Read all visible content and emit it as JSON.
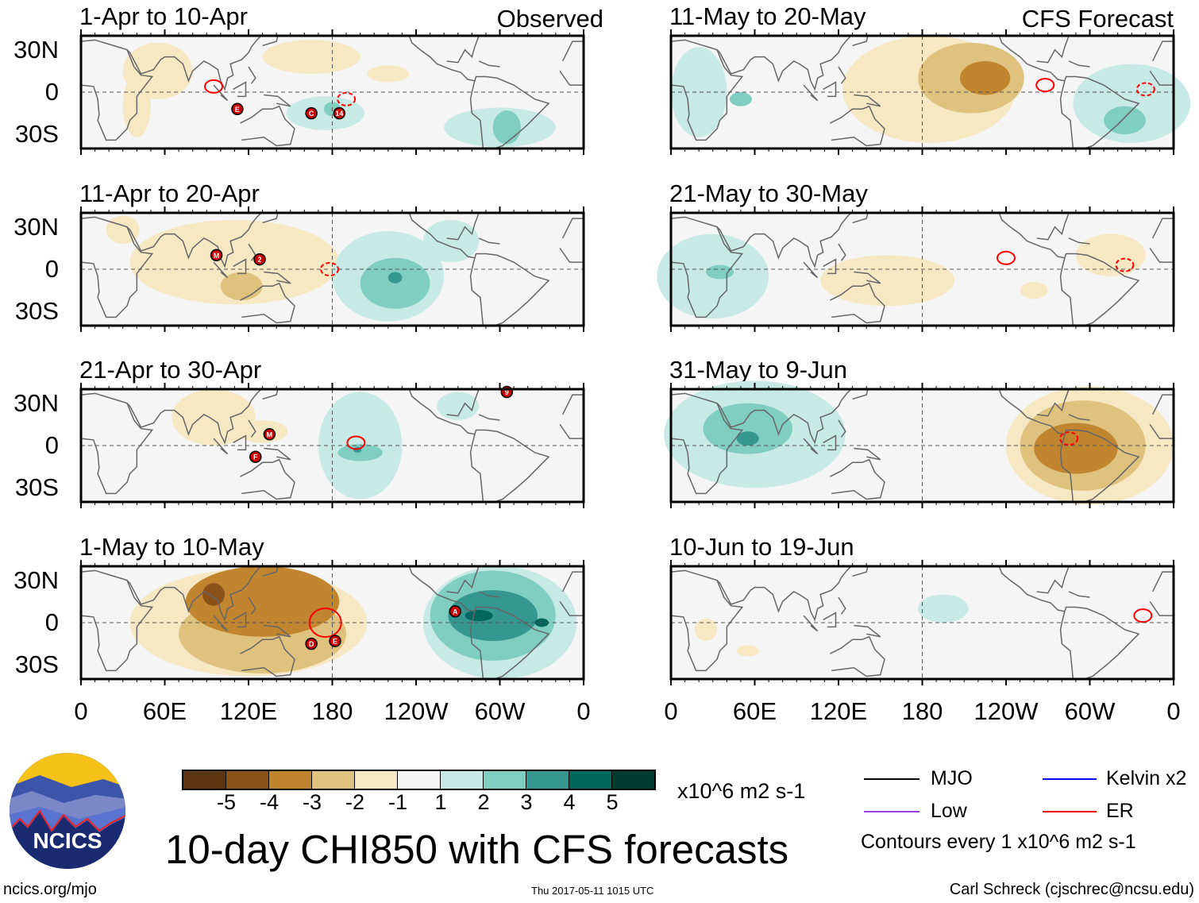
{
  "header": {
    "left_label": "Observed",
    "right_label": "CFS Forecast"
  },
  "axis": {
    "lat_labels": [
      "30N",
      "0",
      "30S"
    ],
    "lon_labels": [
      "0",
      "60E",
      "120E",
      "180",
      "120W",
      "60W",
      "0"
    ]
  },
  "colorbar": {
    "labels": [
      "-5",
      "-4",
      "-3",
      "-2",
      "-1",
      "1",
      "2",
      "3",
      "4",
      "5"
    ],
    "colors": [
      "#5b3510",
      "#8c5117",
      "#c1842f",
      "#dfc27d",
      "#f6e8c3",
      "#f5f5f5",
      "#c7eae5",
      "#80cdc1",
      "#35978f",
      "#01665e",
      "#003c30"
    ],
    "units": "x10^6 m2 s-1"
  },
  "legend": {
    "items": [
      {
        "label": "MJO",
        "color": "#000000"
      },
      {
        "label": "Kelvin x2",
        "color": "#0000ff"
      },
      {
        "label": "Low",
        "color": "#a040e0"
      },
      {
        "label": "ER",
        "color": "#ff0000"
      }
    ],
    "note": "Contours every 1 x10^6 m2 s-1"
  },
  "title": "10-day CHI850 with CFS forecasts",
  "logo": {
    "text": "NCICS"
  },
  "footer": {
    "url": "ncics.org/mjo",
    "timestamp": "Thu 2017-05-11 1015 UTC",
    "author": "Carl Schreck (cjschrec@ncsu.edu)"
  },
  "chart_data": [
    {
      "type": "heatmap",
      "title": "1-Apr to 10-Apr",
      "source": "Observed",
      "xlim": [
        0,
        360
      ],
      "ylim": [
        -40,
        40
      ],
      "anomalies": [
        [
          55,
          15,
          25,
          20,
          -1
        ],
        [
          40,
          -10,
          10,
          22,
          -1
        ],
        [
          165,
          25,
          35,
          12,
          -1
        ],
        [
          220,
          13,
          15,
          6,
          -1
        ],
        [
          175,
          -15,
          28,
          12,
          1
        ],
        [
          180,
          -12,
          6,
          5,
          2
        ],
        [
          300,
          -25,
          40,
          14,
          1
        ],
        [
          305,
          -25,
          10,
          12,
          2
        ]
      ],
      "er_contours": [
        [
          95,
          4,
          "solid"
        ],
        [
          190,
          -5,
          "dashed"
        ]
      ],
      "cyclones": [
        [
          112,
          -12,
          "E"
        ],
        [
          165,
          -15,
          "C"
        ],
        [
          185,
          -15,
          "14"
        ]
      ]
    },
    {
      "type": "heatmap",
      "title": "11-Apr to 20-Apr",
      "source": "Observed",
      "xlim": [
        0,
        360
      ],
      "ylim": [
        -40,
        40
      ],
      "anomalies": [
        [
          110,
          5,
          75,
          30,
          -1
        ],
        [
          30,
          28,
          12,
          10,
          -1
        ],
        [
          115,
          -12,
          15,
          10,
          -2
        ],
        [
          220,
          -5,
          40,
          32,
          1
        ],
        [
          265,
          20,
          20,
          15,
          1
        ],
        [
          225,
          -10,
          25,
          18,
          2
        ],
        [
          225,
          -6,
          5,
          4,
          3
        ]
      ],
      "er_contours": [
        [
          178,
          0,
          "dashed"
        ]
      ],
      "cyclones": [
        [
          97,
          10,
          "M"
        ],
        [
          128,
          7,
          "2"
        ]
      ]
    },
    {
      "type": "heatmap",
      "title": "21-Apr to 30-Apr",
      "source": "Observed",
      "xlim": [
        0,
        360
      ],
      "ylim": [
        -40,
        40
      ],
      "anomalies": [
        [
          95,
          20,
          30,
          20,
          -1
        ],
        [
          130,
          10,
          18,
          8,
          -1
        ],
        [
          200,
          0,
          30,
          38,
          1
        ],
        [
          270,
          28,
          15,
          10,
          1
        ],
        [
          200,
          -5,
          16,
          6,
          2
        ],
        [
          198,
          -3,
          3,
          2,
          3
        ]
      ],
      "er_contours": [
        [
          197,
          2,
          "solid"
        ]
      ],
      "cyclones": [
        [
          135,
          8,
          "M"
        ],
        [
          125,
          -8,
          "F"
        ],
        [
          305,
          38,
          "9"
        ]
      ]
    },
    {
      "type": "heatmap",
      "title": "1-May to 10-May",
      "source": "Observed",
      "xlim": [
        0,
        360
      ],
      "ylim": [
        -40,
        40
      ],
      "anomalies": [
        [
          120,
          0,
          85,
          38,
          -1
        ],
        [
          130,
          -8,
          60,
          28,
          -2
        ],
        [
          130,
          15,
          55,
          25,
          -3
        ],
        [
          95,
          20,
          8,
          8,
          -4
        ],
        [
          300,
          0,
          55,
          40,
          1
        ],
        [
          295,
          5,
          45,
          32,
          2
        ],
        [
          295,
          5,
          32,
          18,
          3
        ],
        [
          285,
          5,
          10,
          4,
          4
        ],
        [
          330,
          0,
          5,
          3,
          4
        ]
      ],
      "er_contours": [
        [
          175,
          0,
          "solid"
        ]
      ],
      "cyclones": [
        [
          165,
          -15,
          "D"
        ],
        [
          182,
          -13,
          "E"
        ],
        [
          268,
          8,
          "A"
        ]
      ]
    },
    {
      "type": "heatmap",
      "title": "11-May to 20-May",
      "source": "CFS Forecast",
      "xlim": [
        0,
        360
      ],
      "ylim": [
        -40,
        40
      ],
      "anomalies": [
        [
          185,
          2,
          62,
          38,
          -1
        ],
        [
          215,
          10,
          38,
          25,
          -2
        ],
        [
          225,
          10,
          18,
          12,
          -3
        ],
        [
          20,
          0,
          20,
          32,
          1
        ],
        [
          330,
          -8,
          42,
          28,
          1
        ],
        [
          325,
          -20,
          15,
          10,
          2
        ],
        [
          50,
          -5,
          8,
          5,
          2
        ]
      ],
      "er_contours": [
        [
          268,
          5,
          "solid"
        ],
        [
          340,
          2,
          "dashed"
        ]
      ],
      "cyclones": []
    },
    {
      "type": "heatmap",
      "title": "21-May to 30-May",
      "source": "CFS Forecast",
      "xlim": [
        0,
        360
      ],
      "ylim": [
        -40,
        40
      ],
      "anomalies": [
        [
          155,
          -8,
          48,
          18,
          -1
        ],
        [
          315,
          10,
          25,
          15,
          -1
        ],
        [
          260,
          -15,
          10,
          6,
          -1
        ],
        [
          30,
          -5,
          40,
          30,
          1
        ],
        [
          35,
          -2,
          10,
          5,
          2
        ]
      ],
      "er_contours": [
        [
          240,
          8,
          "solid"
        ],
        [
          325,
          3,
          "dashed"
        ]
      ],
      "cyclones": []
    },
    {
      "type": "heatmap",
      "title": "31-May to 9-Jun",
      "source": "CFS Forecast",
      "xlim": [
        0,
        360
      ],
      "ylim": [
        -40,
        40
      ],
      "anomalies": [
        [
          60,
          8,
          65,
          38,
          1
        ],
        [
          55,
          12,
          32,
          18,
          2
        ],
        [
          55,
          5,
          8,
          5,
          3
        ],
        [
          300,
          0,
          60,
          42,
          -1
        ],
        [
          295,
          0,
          45,
          32,
          -2
        ],
        [
          290,
          -2,
          30,
          18,
          -3
        ]
      ],
      "er_contours": [
        [
          285,
          5,
          "dashed"
        ]
      ],
      "cyclones": []
    },
    {
      "type": "heatmap",
      "title": "10-Jun to 19-Jun",
      "source": "CFS Forecast",
      "xlim": [
        0,
        360
      ],
      "ylim": [
        -40,
        40
      ],
      "anomalies": [
        [
          195,
          10,
          18,
          10,
          1
        ],
        [
          25,
          -5,
          8,
          8,
          -1
        ],
        [
          55,
          -20,
          8,
          4,
          -1
        ]
      ],
      "er_contours": [
        [
          338,
          5,
          "solid"
        ]
      ],
      "cyclones": []
    }
  ]
}
